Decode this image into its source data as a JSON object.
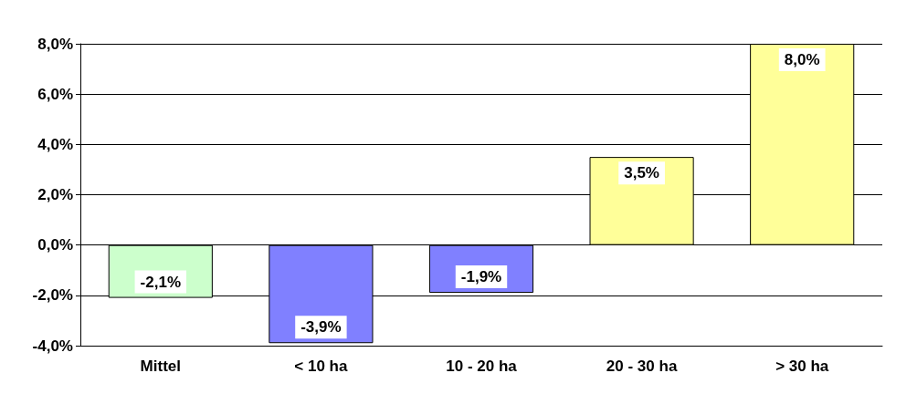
{
  "chart_data": {
    "type": "bar",
    "categories": [
      "Mittel",
      "< 10 ha",
      "10 - 20 ha",
      "20 - 30 ha",
      "> 30 ha"
    ],
    "values": [
      -2.1,
      -3.9,
      -1.9,
      3.5,
      8.0
    ],
    "colors": [
      "#ccffcc",
      "#8080ff",
      "#8080ff",
      "#ffff99",
      "#ffff99"
    ],
    "value_labels": [
      "-2,1%",
      "-3,9%",
      "-1,9%",
      "3,5%",
      "8,0%"
    ],
    "ylim": [
      -4,
      8
    ],
    "yticks": [
      {
        "value": -4,
        "label": "-4,0%"
      },
      {
        "value": -2,
        "label": "-2,0%"
      },
      {
        "value": 0,
        "label": "0,0%"
      },
      {
        "value": 2,
        "label": "2,0%"
      },
      {
        "value": 4,
        "label": "4,0%"
      },
      {
        "value": 6,
        "label": "6,0%"
      },
      {
        "value": 8,
        "label": "8,0%"
      }
    ],
    "grid": "y"
  }
}
